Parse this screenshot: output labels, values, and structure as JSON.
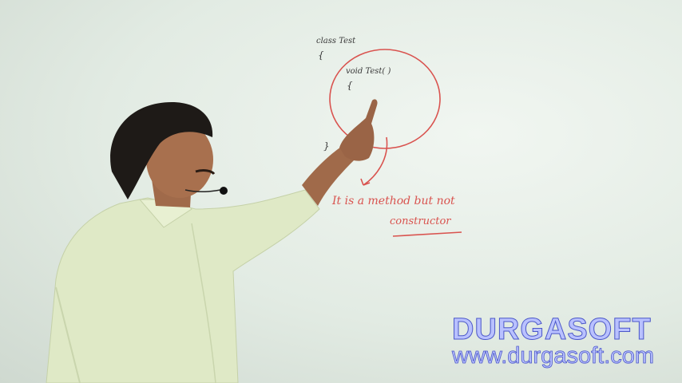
{
  "board": {
    "class_line": "class  Test",
    "open_brace_1": "{",
    "method_line": "void  Test( )",
    "open_brace_2": "{",
    "close_brace": "}",
    "note_line1": "It is a method but not",
    "note_line2": "constructor"
  },
  "watermark": {
    "brand": "DURGASOFT",
    "url": "www.durgasoft.com",
    "fill_color": "#b9c1ff",
    "outline_color": "#4b57c8"
  },
  "colors": {
    "board": "#e4ece4",
    "marker_red": "#d9534f",
    "marker_dark": "#3a3a3a",
    "shirt": "#dfe9c6"
  }
}
